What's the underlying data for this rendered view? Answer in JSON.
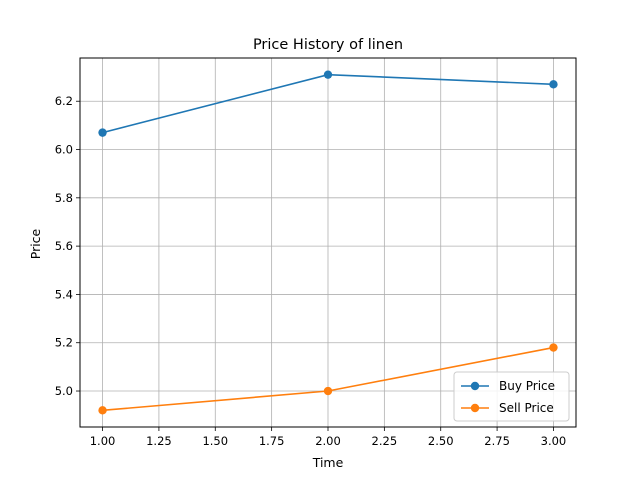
{
  "chart_data": {
    "type": "line",
    "title": "Price History of linen",
    "xlabel": "Time",
    "ylabel": "Price",
    "xlim": [
      0.9,
      3.1
    ],
    "ylim": [
      4.851,
      6.379
    ],
    "xticks": [
      1.0,
      1.25,
      1.5,
      1.75,
      2.0,
      2.25,
      2.5,
      2.75,
      3.0
    ],
    "xtick_labels": [
      "1.00",
      "1.25",
      "1.50",
      "1.75",
      "2.00",
      "2.25",
      "2.50",
      "2.75",
      "3.00"
    ],
    "yticks": [
      5.0,
      5.2,
      5.4,
      5.6,
      5.8,
      6.0,
      6.2
    ],
    "ytick_labels": [
      "5.0",
      "5.2",
      "5.4",
      "5.6",
      "5.8",
      "6.0",
      "6.2"
    ],
    "grid": true,
    "legend_position": "bottom-right",
    "x": [
      1.0,
      2.0,
      3.0
    ],
    "series": [
      {
        "name": "Buy Price",
        "color": "#1f77b4",
        "values": [
          6.07,
          6.31,
          6.27
        ]
      },
      {
        "name": "Sell Price",
        "color": "#ff7f0e",
        "values": [
          4.92,
          5.0,
          5.18
        ]
      }
    ]
  }
}
